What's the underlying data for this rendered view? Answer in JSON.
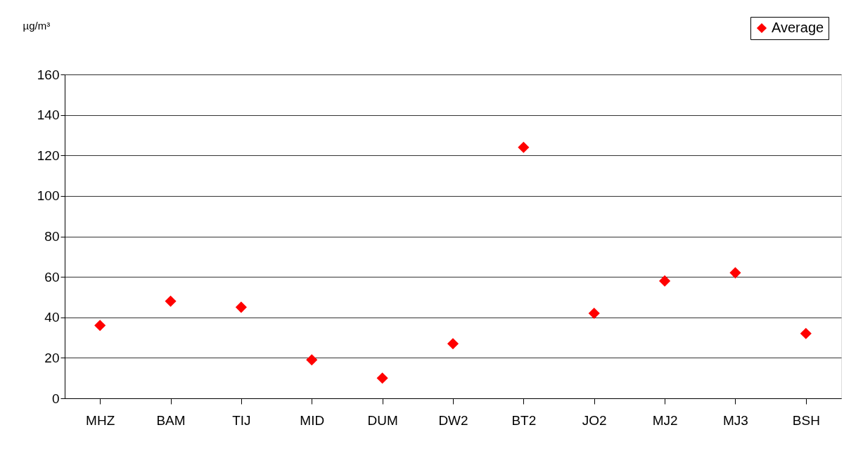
{
  "chart_data": {
    "type": "scatter",
    "ylabel": "µg/m³",
    "categories": [
      "MHZ",
      "BAM",
      "TIJ",
      "MID",
      "DUM",
      "DW2",
      "BT2",
      "JO2",
      "MJ2",
      "MJ3",
      "BSH"
    ],
    "series": [
      {
        "name": "Average",
        "color": "#ff0000",
        "values": [
          36,
          48,
          45,
          19,
          10,
          27,
          124,
          42,
          58,
          62,
          32
        ]
      }
    ],
    "ylim": [
      0,
      160
    ],
    "yticks": [
      0,
      20,
      40,
      60,
      80,
      100,
      120,
      140,
      160
    ],
    "grid": "y",
    "legend": "top right",
    "marker": "diamond"
  }
}
